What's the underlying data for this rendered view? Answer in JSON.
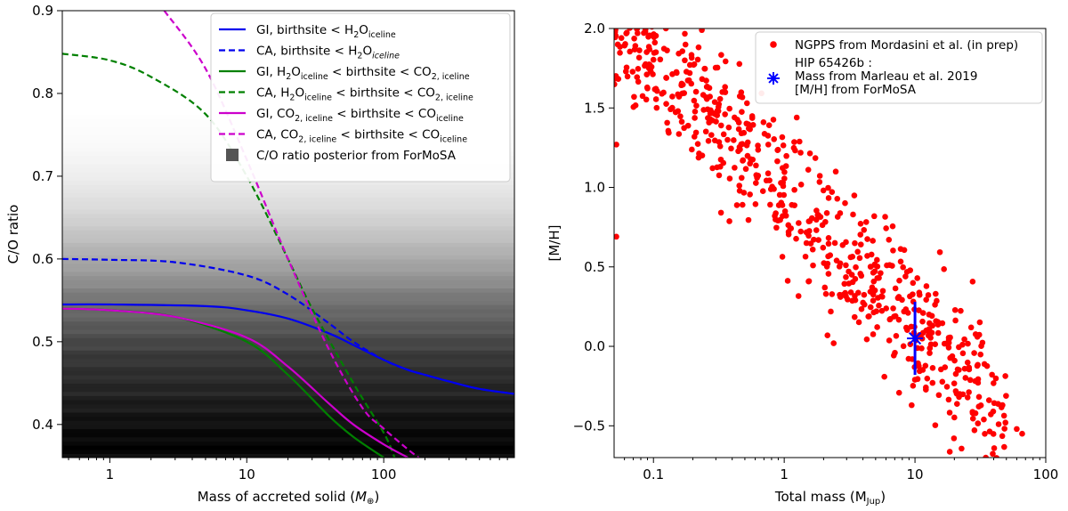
{
  "chart_data": [
    {
      "type": "line",
      "panel": "left",
      "xlabel": "Mass of accreted solid (",
      "xlabel_symbol": "M",
      "xlabel_symbol_sub": "⊕",
      "xlabel_close": ")",
      "ylabel": "C/O ratio",
      "xscale": "log",
      "xlim": [
        0.45,
        900
      ],
      "ylim": [
        0.36,
        0.9
      ],
      "xticks": [
        {
          "value": 1,
          "label": "1"
        },
        {
          "value": 10,
          "label": "10"
        },
        {
          "value": 100,
          "label": "100"
        }
      ],
      "yticks": [
        {
          "value": 0.4,
          "label": "0.4"
        },
        {
          "value": 0.5,
          "label": "0.5"
        },
        {
          "value": 0.6,
          "label": "0.6"
        },
        {
          "value": 0.7,
          "label": "0.7"
        },
        {
          "value": 0.8,
          "label": "0.8"
        },
        {
          "value": 0.9,
          "label": "0.9"
        }
      ],
      "background": {
        "label": "C/O ratio posterior from ForMoSA",
        "color": "#555555",
        "intensity_y": [
          0.36,
          0.38,
          0.4,
          0.42,
          0.45,
          0.48,
          0.5,
          0.52,
          0.55,
          0.58,
          0.62,
          0.66,
          0.7,
          0.74,
          0.78
        ],
        "intensity_v": [
          1.0,
          1.0,
          0.96,
          0.92,
          0.86,
          0.8,
          0.74,
          0.66,
          0.56,
          0.42,
          0.27,
          0.15,
          0.07,
          0.02,
          0.0
        ]
      },
      "series": [
        {
          "name": "GI, birthsite < H2O_iceline",
          "color": "#0000ee",
          "dash": false,
          "model": "gi_h2o",
          "label_parts": [
            {
              "t": "GI, birthsite < H"
            },
            {
              "t": "2",
              "sub": true
            },
            {
              "t": "O"
            },
            {
              "t": "iceline",
              "sub": true
            }
          ],
          "x": [
            0.45,
            1,
            5,
            10,
            20,
            40,
            60,
            100,
            150,
            200,
            300,
            500,
            900
          ],
          "y": [
            0.545,
            0.545,
            0.543,
            0.538,
            0.528,
            0.51,
            0.496,
            0.478,
            0.466,
            0.46,
            0.452,
            0.443,
            0.437
          ]
        },
        {
          "name": "CA, birthsite < H2O_iceline",
          "color": "#0000ee",
          "dash": true,
          "model": "ca_h2o",
          "label_parts": [
            {
              "t": "CA, birthsite < H"
            },
            {
              "t": "2",
              "sub": true
            },
            {
              "t": "O"
            },
            {
              "t": "iceline",
              "sub": true,
              "italic": true
            }
          ],
          "x": [
            0.45,
            1,
            3,
            10,
            20,
            40,
            60,
            100,
            150,
            200,
            300,
            500,
            900
          ],
          "y": [
            0.6,
            0.599,
            0.596,
            0.58,
            0.557,
            0.522,
            0.5,
            0.478,
            0.466,
            0.46,
            0.452,
            0.443,
            0.437
          ]
        },
        {
          "name": "GI, H2O_iceline < birthsite < CO2_iceline",
          "color": "#008000",
          "dash": false,
          "model": "gi_co2",
          "label_parts": [
            {
              "t": "GI, H"
            },
            {
              "t": "2",
              "sub": true
            },
            {
              "t": "O"
            },
            {
              "t": "iceline",
              "sub": true
            },
            {
              "t": " < birthsite < CO"
            },
            {
              "t": "2, iceline",
              "sub": true
            }
          ],
          "x": [
            0.45,
            1,
            3,
            10,
            20,
            40,
            60,
            100
          ],
          "y": [
            0.54,
            0.538,
            0.53,
            0.5,
            0.46,
            0.41,
            0.385,
            0.36
          ]
        },
        {
          "name": "CA, H2O_iceline < birthsite < CO2_iceline",
          "color": "#008000",
          "dash": true,
          "model": "ca_co2",
          "label_parts": [
            {
              "t": "CA, H"
            },
            {
              "t": "2",
              "sub": true
            },
            {
              "t": "O"
            },
            {
              "t": "iceline",
              "sub": true
            },
            {
              "t": " < birthsite < CO"
            },
            {
              "t": "2, iceline",
              "sub": true
            }
          ],
          "x": [
            0.45,
            1,
            2,
            5,
            10,
            20,
            30,
            60,
            100,
            120
          ],
          "y": [
            0.848,
            0.84,
            0.82,
            0.775,
            0.7,
            0.6,
            0.54,
            0.45,
            0.39,
            0.36
          ]
        },
        {
          "name": "GI, CO2_iceline < birthsite < CO_iceline",
          "color": "#cc00cc",
          "dash": false,
          "model": "gi_co",
          "label_parts": [
            {
              "t": "GI, CO"
            },
            {
              "t": "2, iceline",
              "sub": true
            },
            {
              "t": " < birthsite < CO"
            },
            {
              "t": "iceline",
              "sub": true
            }
          ],
          "x": [
            0.45,
            1,
            3,
            10,
            20,
            40,
            60,
            100,
            150
          ],
          "y": [
            0.54,
            0.538,
            0.53,
            0.505,
            0.47,
            0.425,
            0.4,
            0.376,
            0.36
          ]
        },
        {
          "name": "CA, CO2_iceline < birthsite < CO_iceline",
          "color": "#cc00cc",
          "dash": true,
          "model": "ca_co",
          "label_parts": [
            {
              "t": "CA, CO"
            },
            {
              "t": "2, iceline",
              "sub": true
            },
            {
              "t": " < birthsite < CO"
            },
            {
              "t": "iceline",
              "sub": true
            }
          ],
          "x": [
            2.5,
            5,
            10,
            20,
            40,
            70,
            100,
            150,
            180
          ],
          "y": [
            0.9,
            0.83,
            0.72,
            0.6,
            0.49,
            0.42,
            0.395,
            0.37,
            0.36
          ]
        }
      ]
    },
    {
      "type": "scatter",
      "panel": "right",
      "xlabel": "Total mass (M",
      "xlabel_sub": "Jup",
      "xlabel_close": ")",
      "ylabel": "[M/H]",
      "xscale": "log",
      "xlim": [
        0.05,
        100
      ],
      "ylim": [
        -0.7,
        2.0
      ],
      "xticks": [
        {
          "value": 0.1,
          "label": "0.1"
        },
        {
          "value": 1,
          "label": "1"
        },
        {
          "value": 10,
          "label": "10"
        },
        {
          "value": 100,
          "label": "100"
        }
      ],
      "yticks": [
        {
          "value": -0.5,
          "label": "−0.5"
        },
        {
          "value": 0.0,
          "label": "0.0"
        },
        {
          "value": 0.5,
          "label": "0.5"
        },
        {
          "value": 1.0,
          "label": "1.0"
        },
        {
          "value": 1.5,
          "label": "1.5"
        },
        {
          "value": 2.0,
          "label": "2.0"
        }
      ],
      "points_color": "#ff0000",
      "point_count": 700,
      "trend": {
        "intercept": 0.97,
        "slope": -0.83,
        "scatter_sigma": 0.22
      },
      "outliers": [
        {
          "x": 0.052,
          "y": 0.69
        },
        {
          "x": 66,
          "y": -0.55
        },
        {
          "x": 60,
          "y": -0.52
        },
        {
          "x": 30,
          "y": 0.06
        },
        {
          "x": 22,
          "y": -0.3
        }
      ],
      "legend": [
        {
          "label": "NGPPS from Mordasini et al. (in prep)",
          "marker": "circle",
          "color": "#ff0000"
        },
        {
          "label_lines": [
            "HIP 65426b :",
            "Mass from Marleau et al. 2019",
            "[M/H] from ForMoSA"
          ],
          "marker": "star",
          "color": "#0000ff"
        }
      ],
      "highlight": {
        "name": "HIP 65426b",
        "x": 10,
        "y": 0.05,
        "yerr": 0.23,
        "color": "#0000ff"
      }
    }
  ]
}
